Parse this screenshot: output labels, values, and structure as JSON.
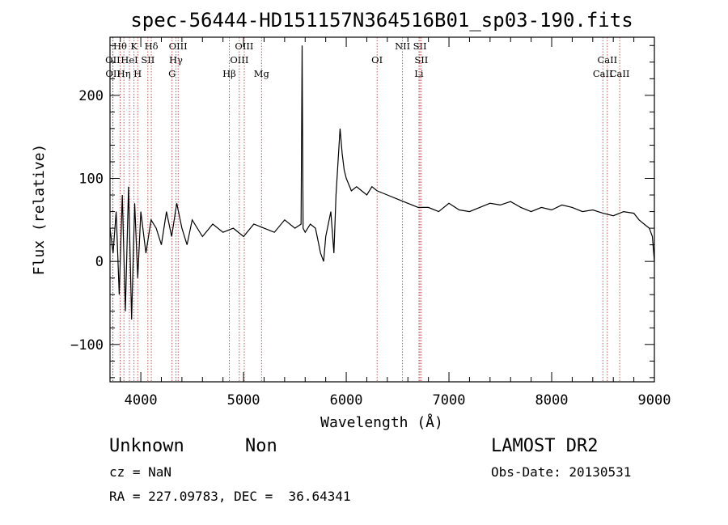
{
  "chart_data": {
    "type": "line",
    "title": "spec-56444-HD151157N364516B01_sp03-190.fits",
    "xlabel": "Wavelength (Å)",
    "ylabel": "Flux (relative)",
    "xlim": [
      3700,
      9000
    ],
    "ylim": [
      -145,
      270
    ],
    "x_ticks": [
      4000,
      5000,
      6000,
      7000,
      8000,
      9000
    ],
    "y_ticks": [
      -100,
      0,
      100,
      200
    ],
    "grid": false,
    "line_color": "#000000",
    "marker_line_color": "#b03030",
    "series": [
      {
        "x": [
          3700,
          3730,
          3760,
          3790,
          3820,
          3850,
          3880,
          3910,
          3940,
          3970,
          4000,
          4050,
          4100,
          4150,
          4200,
          4250,
          4300,
          4350,
          4400,
          4450,
          4500,
          4600,
          4700,
          4800,
          4900,
          5000,
          5100,
          5200,
          5300,
          5400,
          5500,
          5560,
          5570,
          5580,
          5600,
          5650,
          5700,
          5750,
          5780,
          5800,
          5850,
          5880,
          5900,
          5920,
          5940,
          5960,
          5980,
          6000,
          6050,
          6100,
          6150,
          6200,
          6250,
          6300,
          6400,
          6500,
          6600,
          6700,
          6800,
          6900,
          7000,
          7100,
          7200,
          7300,
          7400,
          7500,
          7600,
          7700,
          7800,
          7900,
          8000,
          8100,
          8200,
          8300,
          8400,
          8500,
          8600,
          8700,
          8800,
          8850,
          8900,
          8950,
          8980,
          9000
        ],
        "y": [
          40,
          10,
          60,
          -40,
          80,
          -60,
          90,
          -70,
          70,
          -20,
          60,
          10,
          50,
          40,
          20,
          60,
          30,
          70,
          40,
          20,
          50,
          30,
          45,
          35,
          40,
          30,
          45,
          40,
          35,
          50,
          40,
          45,
          260,
          40,
          35,
          45,
          40,
          10,
          0,
          30,
          60,
          10,
          80,
          120,
          160,
          130,
          110,
          100,
          85,
          90,
          85,
          80,
          90,
          85,
          80,
          75,
          70,
          65,
          65,
          60,
          70,
          62,
          60,
          65,
          70,
          68,
          72,
          65,
          60,
          65,
          62,
          68,
          65,
          60,
          62,
          58,
          55,
          60,
          58,
          50,
          45,
          40,
          30,
          0
        ]
      }
    ],
    "line_markers": [
      {
        "label": "Hθ",
        "wavelength": 3798,
        "row": 0
      },
      {
        "label": "OII",
        "wavelength": 3727,
        "row": 1
      },
      {
        "label": "OII",
        "wavelength": 3729,
        "row": 2
      },
      {
        "label": "HeI",
        "wavelength": 3889,
        "row": 1
      },
      {
        "label": "Hη",
        "wavelength": 3835,
        "row": 2
      },
      {
        "label": "K",
        "wavelength": 3934,
        "row": 0
      },
      {
        "label": "H",
        "wavelength": 3969,
        "row": 2
      },
      {
        "label": "SII",
        "wavelength": 4069,
        "row": 1
      },
      {
        "label": "Hδ",
        "wavelength": 4102,
        "row": 0
      },
      {
        "label": "OIII",
        "wavelength": 4363,
        "row": 0
      },
      {
        "label": "Hγ",
        "wavelength": 4341,
        "row": 1
      },
      {
        "label": "G",
        "wavelength": 4304,
        "row": 2
      },
      {
        "label": "Hβ",
        "wavelength": 4861,
        "row": 2
      },
      {
        "label": "OIII",
        "wavelength": 5007,
        "row": 0
      },
      {
        "label": "OIII",
        "wavelength": 4959,
        "row": 1
      },
      {
        "label": "Mg",
        "wavelength": 5175,
        "row": 2
      },
      {
        "label": "OI",
        "wavelength": 6300,
        "row": 1
      },
      {
        "label": "NII",
        "wavelength": 6548,
        "row": 0
      },
      {
        "label": "SII",
        "wavelength": 6717,
        "row": 0
      },
      {
        "label": "SII",
        "wavelength": 6731,
        "row": 1
      },
      {
        "label": "Li",
        "wavelength": 6708,
        "row": 2
      },
      {
        "label": "CaII",
        "wavelength": 8542,
        "row": 1
      },
      {
        "label": "CaII",
        "wavelength": 8498,
        "row": 2
      },
      {
        "label": "CaII",
        "wavelength": 8662,
        "row": 2
      }
    ]
  },
  "footer": {
    "class": "Unknown",
    "subclass": "Non",
    "survey": "LAMOST DR2",
    "cz": "cz = NaN",
    "obs_date": "Obs-Date: 20130531",
    "coords": "RA = 227.09783, DEC =  36.64341"
  }
}
